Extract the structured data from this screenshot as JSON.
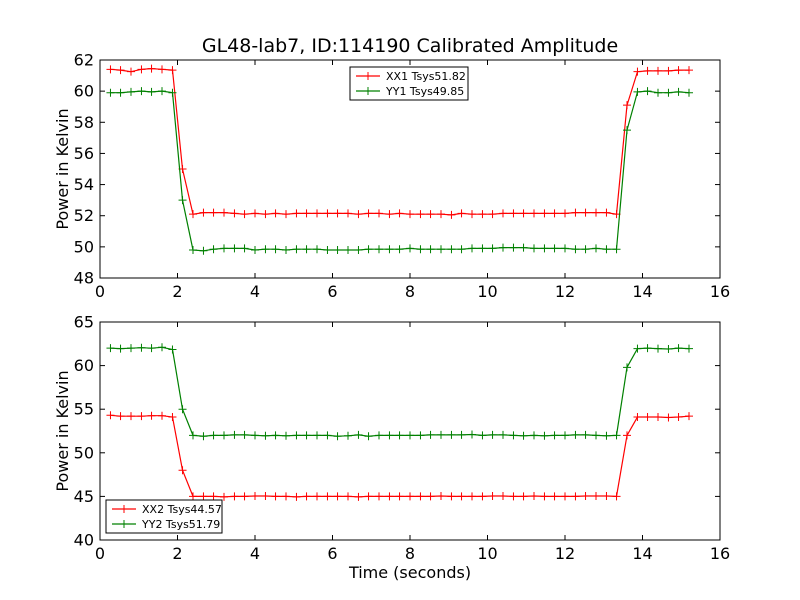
{
  "chart_data": [
    {
      "type": "line",
      "title": "GL48-lab7, ID:114190 Calibrated Amplitude",
      "xlabel": "",
      "ylabel": "Power in Kelvin",
      "xlim": [
        0,
        16
      ],
      "ylim": [
        48,
        62
      ],
      "xticks": [
        0,
        2,
        4,
        6,
        8,
        10,
        12,
        14,
        16
      ],
      "yticks": [
        48,
        50,
        52,
        54,
        56,
        58,
        60,
        62
      ],
      "legend_position": "upper center",
      "x": [
        0.27,
        0.53,
        0.8,
        1.07,
        1.33,
        1.6,
        1.87,
        2.13,
        2.4,
        2.67,
        2.93,
        3.2,
        3.47,
        3.73,
        4.0,
        4.27,
        4.53,
        4.8,
        5.07,
        5.33,
        5.6,
        5.87,
        6.13,
        6.4,
        6.67,
        6.93,
        7.2,
        7.47,
        7.73,
        8.0,
        8.27,
        8.53,
        8.8,
        9.07,
        9.33,
        9.6,
        9.87,
        10.13,
        10.4,
        10.67,
        10.93,
        11.2,
        11.47,
        11.73,
        12.0,
        12.27,
        12.53,
        12.8,
        13.07,
        13.33,
        13.6,
        13.87,
        14.13,
        14.4,
        14.67,
        14.93,
        15.2
      ],
      "series": [
        {
          "name": "XX1 Tsys51.82",
          "color": "#ff0000",
          "values": [
            61.4,
            61.35,
            61.25,
            61.4,
            61.45,
            61.4,
            61.35,
            55.0,
            52.1,
            52.2,
            52.2,
            52.2,
            52.15,
            52.1,
            52.15,
            52.1,
            52.15,
            52.1,
            52.15,
            52.15,
            52.15,
            52.15,
            52.15,
            52.15,
            52.1,
            52.15,
            52.15,
            52.1,
            52.15,
            52.1,
            52.1,
            52.1,
            52.1,
            52.05,
            52.15,
            52.1,
            52.1,
            52.1,
            52.15,
            52.15,
            52.15,
            52.15,
            52.15,
            52.15,
            52.15,
            52.2,
            52.2,
            52.2,
            52.2,
            52.1,
            59.1,
            61.25,
            61.3,
            61.3,
            61.3,
            61.35,
            61.35
          ]
        },
        {
          "name": "YY1 Tsys49.85",
          "color": "#008000",
          "values": [
            59.9,
            59.9,
            59.95,
            60.0,
            59.95,
            60.0,
            59.9,
            53.0,
            49.8,
            49.75,
            49.85,
            49.9,
            49.9,
            49.9,
            49.8,
            49.85,
            49.85,
            49.8,
            49.85,
            49.85,
            49.85,
            49.8,
            49.8,
            49.8,
            49.8,
            49.85,
            49.85,
            49.85,
            49.85,
            49.9,
            49.85,
            49.85,
            49.85,
            49.85,
            49.85,
            49.9,
            49.9,
            49.9,
            49.95,
            49.95,
            49.95,
            49.9,
            49.9,
            49.9,
            49.9,
            49.85,
            49.85,
            49.9,
            49.85,
            49.85,
            57.5,
            59.95,
            60.0,
            59.9,
            59.9,
            59.95,
            59.9
          ]
        }
      ]
    },
    {
      "type": "line",
      "title": "",
      "xlabel": "Time (seconds)",
      "ylabel": "Power in Kelvin",
      "xlim": [
        0,
        16
      ],
      "ylim": [
        40,
        65
      ],
      "xticks": [
        0,
        2,
        4,
        6,
        8,
        10,
        12,
        14,
        16
      ],
      "yticks": [
        40,
        45,
        50,
        55,
        60,
        65
      ],
      "legend_position": "lower left",
      "x": [
        0.27,
        0.53,
        0.8,
        1.07,
        1.33,
        1.6,
        1.87,
        2.13,
        2.4,
        2.67,
        2.93,
        3.2,
        3.47,
        3.73,
        4.0,
        4.27,
        4.53,
        4.8,
        5.07,
        5.33,
        5.6,
        5.87,
        6.13,
        6.4,
        6.67,
        6.93,
        7.2,
        7.47,
        7.73,
        8.0,
        8.27,
        8.53,
        8.8,
        9.07,
        9.33,
        9.6,
        9.87,
        10.13,
        10.4,
        10.67,
        10.93,
        11.2,
        11.47,
        11.73,
        12.0,
        12.27,
        12.53,
        12.8,
        13.07,
        13.33,
        13.6,
        13.87,
        14.13,
        14.4,
        14.67,
        14.93,
        15.2
      ],
      "series": [
        {
          "name": "XX2 Tsys44.57",
          "color": "#ff0000",
          "values": [
            54.3,
            54.2,
            54.2,
            54.2,
            54.25,
            54.25,
            54.1,
            48.0,
            45.0,
            45.0,
            45.0,
            44.95,
            45.0,
            45.0,
            45.05,
            45.05,
            45.0,
            45.0,
            44.95,
            45.0,
            45.0,
            45.0,
            45.0,
            45.0,
            44.95,
            45.0,
            45.0,
            45.0,
            45.0,
            45.0,
            45.0,
            45.0,
            45.05,
            45.0,
            45.0,
            45.0,
            45.0,
            45.05,
            45.05,
            45.0,
            45.0,
            45.05,
            45.0,
            45.0,
            45.0,
            45.0,
            45.05,
            45.05,
            45.05,
            45.0,
            52.0,
            54.1,
            54.1,
            54.1,
            54.05,
            54.1,
            54.2
          ]
        },
        {
          "name": "YY2 Tsys51.79",
          "color": "#008000",
          "values": [
            62.0,
            61.95,
            62.0,
            62.05,
            62.0,
            62.1,
            61.85,
            55.0,
            52.0,
            51.9,
            52.0,
            52.0,
            52.05,
            52.05,
            52.0,
            51.95,
            52.0,
            51.95,
            52.0,
            52.0,
            52.0,
            52.0,
            51.9,
            51.95,
            52.05,
            51.9,
            52.0,
            52.0,
            52.0,
            52.0,
            52.0,
            52.05,
            52.05,
            52.05,
            52.05,
            52.1,
            52.0,
            52.05,
            52.05,
            52.0,
            51.95,
            52.0,
            51.95,
            52.0,
            52.0,
            52.05,
            52.05,
            52.0,
            51.95,
            52.0,
            59.8,
            61.95,
            62.0,
            61.95,
            61.9,
            62.0,
            61.95
          ]
        }
      ]
    }
  ]
}
